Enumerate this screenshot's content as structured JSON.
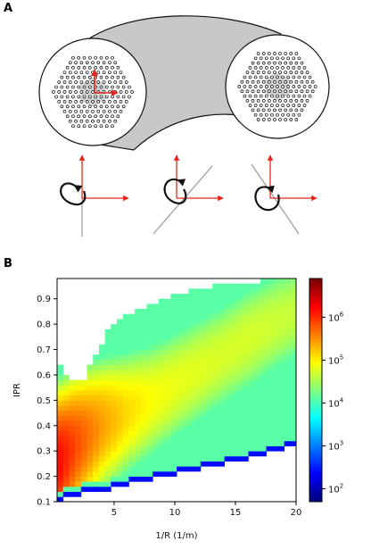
{
  "panel_a": {
    "label": "A"
  },
  "panel_b": {
    "label": "B"
  },
  "colors": {
    "fiber_fill": "#c7c9c8",
    "core_stroke": "#111111",
    "hole_fill": "#ffffff",
    "hex_core": "#d2d4d3",
    "axis_red": "#e8251a",
    "grey_line": "#9a9a9a"
  },
  "chart_data": {
    "type": "heatmap",
    "xlabel": "1/R (1/m)",
    "ylabel": "IPR",
    "xlim": [
      0.3,
      20
    ],
    "ylim": [
      0.1,
      0.98
    ],
    "xticks": [
      "5",
      "10",
      "15",
      "20"
    ],
    "xtick_values": [
      5,
      10,
      15,
      20
    ],
    "yticks": [
      "0.1",
      "0.2",
      "0.3",
      "0.4",
      "0.5",
      "0.6",
      "0.7",
      "0.8",
      "0.9"
    ],
    "ytick_values": [
      0.1,
      0.2,
      0.3,
      0.4,
      0.5,
      0.6,
      0.7,
      0.8,
      0.9
    ],
    "colorbar": {
      "scale": "log",
      "range": [
        50,
        8000000
      ],
      "ticks": [
        "10^2",
        "10^3",
        "10^4",
        "10^5",
        "10^6"
      ],
      "tick_values": [
        2,
        3,
        4,
        5,
        6
      ],
      "colormap": "jet"
    },
    "support_boundary": {
      "x": [
        0.3,
        1.5,
        2.5,
        3.5,
        4.5,
        5.5,
        7,
        9,
        11,
        13,
        15,
        17,
        19,
        20
      ],
      "upper_ipr": [
        0.65,
        0.58,
        0.58,
        0.68,
        0.78,
        0.82,
        0.86,
        0.9,
        0.93,
        0.95,
        0.96,
        0.97,
        0.98,
        0.98
      ],
      "lower_ipr": [
        0.1,
        0.12,
        0.13,
        0.14,
        0.15,
        0.16,
        0.18,
        0.2,
        0.22,
        0.24,
        0.26,
        0.28,
        0.31,
        0.32
      ]
    },
    "ridge": {
      "x": [
        0.3,
        2,
        4,
        6,
        8,
        10,
        12,
        14,
        16,
        18,
        20
      ],
      "ipr": [
        0.25,
        0.33,
        0.4,
        0.45,
        0.5,
        0.56,
        0.62,
        0.68,
        0.74,
        0.8,
        0.85
      ],
      "log10_count": [
        6.4,
        6.0,
        5.6,
        5.3,
        5.1,
        5.0,
        4.95,
        4.9,
        4.9,
        4.85,
        4.8
      ]
    }
  }
}
